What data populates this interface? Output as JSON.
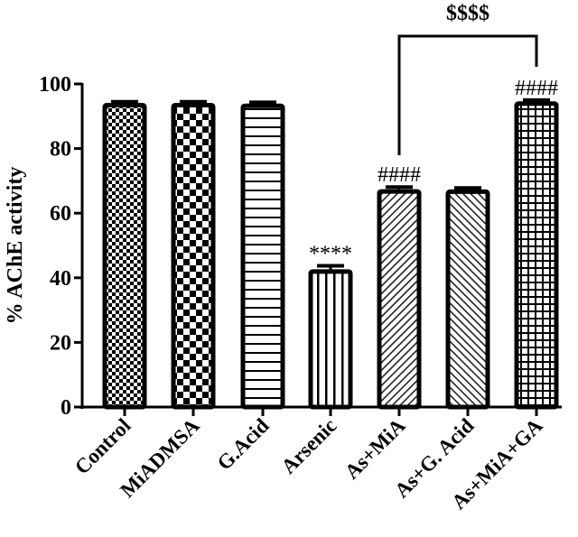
{
  "chart_data": {
    "type": "bar",
    "title": "",
    "xlabel": "",
    "ylabel": "% AChE activity",
    "ylim": [
      0,
      100
    ],
    "yticks": [
      0,
      20,
      40,
      60,
      80,
      100
    ],
    "grid": false,
    "legend": null,
    "categories": [
      "Control",
      "MiADMSA",
      "G.Acid",
      "Arsenic",
      "As+MiA",
      "As+G. Acid",
      "As+MiA+GA"
    ],
    "values": [
      94,
      94,
      93.8,
      42.5,
      67.3,
      67.2,
      94.5
    ],
    "errors": [
      0.5,
      0.5,
      0.5,
      1.2,
      0.8,
      0.6,
      0.5
    ],
    "patterns": [
      "fine-checker",
      "coarse-checker",
      "horizontal-lines",
      "vertical-lines",
      "diagonal-up",
      "diagonal-down",
      "grid"
    ],
    "annotations": [
      {
        "category": "Arsenic",
        "text": "****"
      },
      {
        "category": "As+MiA",
        "text": "####"
      },
      {
        "category": "As+MiA+GA",
        "text": "####"
      }
    ],
    "brackets": [
      {
        "from": "As+MiA",
        "to": "As+MiA+GA",
        "text": "$$$$"
      }
    ]
  }
}
